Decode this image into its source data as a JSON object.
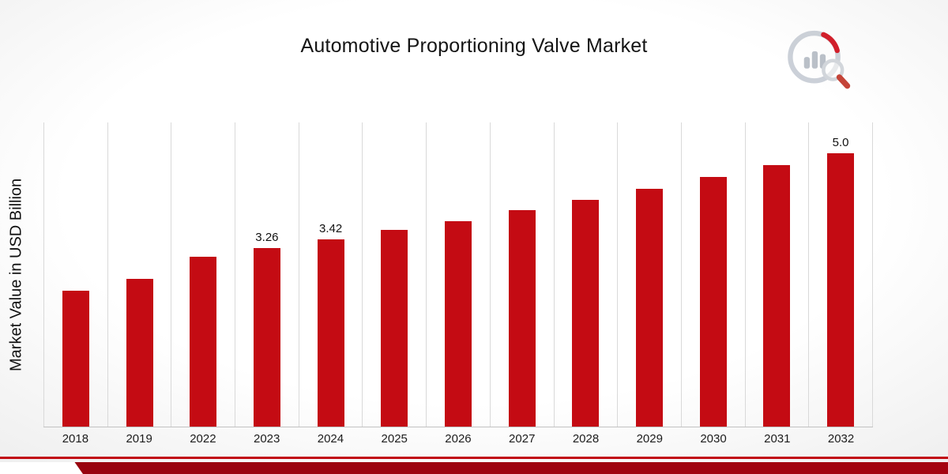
{
  "page": {
    "title": "Automotive Proportioning Valve Market"
  },
  "chart_data": {
    "type": "bar",
    "title": "Automotive Proportioning Valve Market",
    "xlabel": "",
    "ylabel": "Market Value in USD Billion",
    "categories": [
      "2018",
      "2019",
      "2022",
      "2023",
      "2024",
      "2025",
      "2026",
      "2027",
      "2028",
      "2029",
      "2030",
      "2031",
      "2032"
    ],
    "values": [
      2.48,
      2.7,
      3.11,
      3.26,
      3.42,
      3.59,
      3.76,
      3.95,
      4.14,
      4.34,
      4.56,
      4.78,
      5.0
    ],
    "value_labels": {
      "2023": "3.26",
      "2024": "3.42",
      "2032": "5.0"
    },
    "ylim": [
      0,
      5.56
    ],
    "grid": "vertical",
    "legend": "none",
    "bar_color": "#c40b13",
    "gridline_color": "#d9d9d9",
    "axis_line_color": "#c2c2c2"
  },
  "footer": {
    "ribbon_bright_color": "#c10813",
    "ribbon_dark_color": "#97030f"
  }
}
